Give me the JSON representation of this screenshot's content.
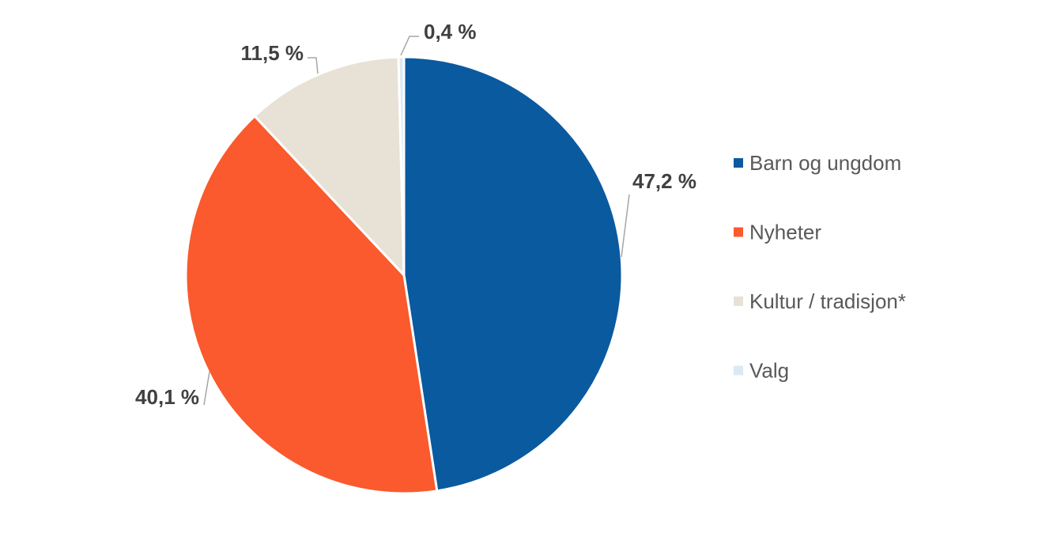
{
  "chart_data": {
    "type": "pie",
    "title": "",
    "categories": [
      "Barn og ungdom",
      "Nyheter",
      "Kultur / tradisjon*",
      "Valg"
    ],
    "values": [
      47.2,
      40.1,
      11.5,
      0.4
    ],
    "labels": [
      "47,2 %",
      "40,1 %",
      "11,5 %",
      "0,4 %"
    ],
    "colors": [
      "#0a5aa0",
      "#fa5a2d",
      "#e8e1d6",
      "#dce9f4"
    ],
    "start_angle": "12 o'clock",
    "direction": "clockwise",
    "legend": {
      "placement": "right",
      "entries": [
        "Barn og ungdom",
        "Nyheter",
        "Kultur / tradisjon*",
        "Valg"
      ]
    }
  }
}
